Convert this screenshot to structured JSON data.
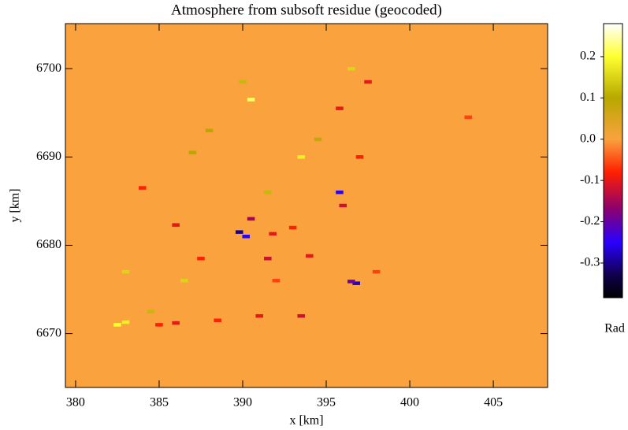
{
  "chart_data": {
    "type": "heatmap",
    "title": "Atmosphere from subsoft residue (geocoded)",
    "x_label": "x [km]",
    "y_label": "y [km]",
    "xlim": [
      379.39,
      408.25
    ],
    "ylim": [
      6663.9,
      6705.1
    ],
    "xticks": [
      380,
      385,
      390,
      395,
      400,
      405
    ],
    "yticks": [
      6670,
      6680,
      6690,
      6700
    ],
    "background_value": 0.0,
    "colorbar": {
      "label": "Rad",
      "lim": [
        -0.384,
        0.28
      ],
      "ticks": [
        -0.3,
        -0.2,
        -0.1,
        {
          "value": 0,
          "label": "0.0"
        },
        0.1,
        0.2
      ],
      "colorscale": [
        {
          "value": -0.384,
          "color": "#000000"
        },
        {
          "value": -0.33,
          "color": "#10004a"
        },
        {
          "value": -0.25,
          "color": "#2a00ff"
        },
        {
          "value": -0.17,
          "color": "#8a0070"
        },
        {
          "value": -0.08,
          "color": "#ff2000"
        },
        {
          "value": 0.0,
          "color": "#f9a23e"
        },
        {
          "value": 0.1,
          "color": "#b8a800"
        },
        {
          "value": 0.2,
          "color": "#ffff30"
        },
        {
          "value": 0.28,
          "color": "#ffffff"
        }
      ]
    },
    "spots": {
      "x": [
        389.8,
        390.2,
        396.8,
        395.8,
        396.5,
        386,
        385,
        386,
        388.5,
        391.5,
        394,
        392,
        395.8,
        397.5,
        393,
        396,
        384,
        398,
        390.5,
        391,
        393.5,
        387.5,
        403.5,
        397,
        391.8,
        382.5,
        383,
        384.5,
        396.5,
        390.5,
        393.5,
        387,
        391.5,
        383,
        388,
        386.5,
        394.5,
        390
      ],
      "y": [
        6681.5,
        6681,
        6675.7,
        6686,
        6675.9,
        6682.3,
        6671,
        6671.2,
        6671.5,
        6678.5,
        6678.8,
        6676,
        6695.5,
        6698.5,
        6682,
        6684.5,
        6686.5,
        6677,
        6683,
        6672,
        6672,
        6678.5,
        6694.5,
        6690,
        6681.3,
        6671,
        6671.3,
        6672.5,
        6700,
        6696.5,
        6690,
        6690.5,
        6686,
        6677,
        6693,
        6676,
        6692,
        6698.5
      ],
      "values": [
        -0.3,
        -0.25,
        -0.28,
        -0.25,
        -0.2,
        -0.1,
        -0.08,
        -0.1,
        -0.08,
        -0.12,
        -0.1,
        -0.06,
        -0.1,
        -0.1,
        -0.08,
        -0.12,
        -0.08,
        -0.06,
        -0.15,
        -0.1,
        -0.12,
        -0.08,
        -0.06,
        -0.08,
        -0.1,
        0.2,
        0.18,
        0.12,
        0.15,
        0.22,
        0.18,
        0.1,
        0.12,
        0.15,
        0.1,
        0.15,
        0.08,
        0.12
      ]
    }
  }
}
